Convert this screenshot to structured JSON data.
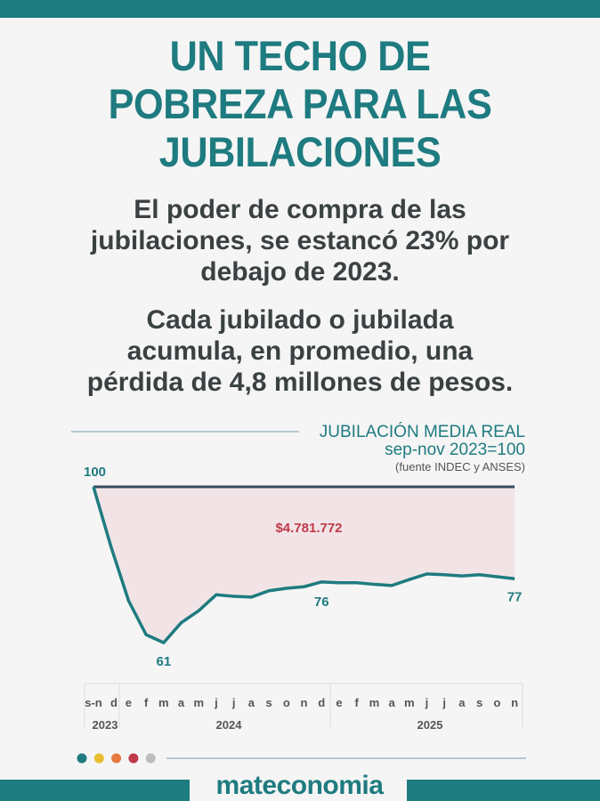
{
  "header": {
    "title_lines": [
      "UN TECHO DE",
      "POBREZA PARA LAS",
      "JUBILACIONES"
    ],
    "subtitle1_lines": [
      "El poder de compra de las",
      "jubilaciones, se estancó 23% por",
      "debajo de 2023."
    ],
    "subtitle2_lines": [
      "Cada jubilado o jubilada",
      "acumula, en promedio, una",
      "pérdida de 4,8 millones de pesos."
    ]
  },
  "chart_data": {
    "type": "line",
    "title": "JUBILACIÓN MEDIA REAL",
    "subtitle": "sep-nov 2023=100",
    "source": "(fuente INDEC y ANSES)",
    "x": [
      "s-n",
      "d",
      "e",
      "f",
      "m",
      "a",
      "m",
      "j",
      "j",
      "a",
      "s",
      "o",
      "n",
      "d",
      "e",
      "f",
      "m",
      "a",
      "m",
      "j",
      "j",
      "a",
      "s",
      "o",
      "n"
    ],
    "years": [
      {
        "label": "2023",
        "from": 0,
        "to": 1
      },
      {
        "label": "2024",
        "from": 2,
        "to": 13
      },
      {
        "label": "2025",
        "from": 14,
        "to": 24
      }
    ],
    "series": [
      {
        "name": "Jubilación media real",
        "values": [
          100,
          85,
          71.5,
          63,
          61,
          66,
          69,
          73,
          72.6,
          72.4,
          74,
          74.6,
          75,
          76.2,
          76,
          76,
          75.6,
          75.3,
          76.8,
          78.2,
          78,
          77.7,
          78,
          77.5,
          77
        ]
      },
      {
        "name": "Base",
        "values": [
          100,
          100,
          100,
          100,
          100,
          100,
          100,
          100,
          100,
          100,
          100,
          100,
          100,
          100,
          100,
          100,
          100,
          100,
          100,
          100,
          100,
          100,
          100,
          100,
          100
        ]
      }
    ],
    "point_labels": [
      {
        "index": 0,
        "text": "100"
      },
      {
        "index": 4,
        "text": "61"
      },
      {
        "index": 13,
        "text": "76"
      },
      {
        "index": 24,
        "text": "77"
      }
    ],
    "area_label": "$4.781.772",
    "ylim": [
      55,
      102
    ],
    "colors": {
      "line": "#1e7b80",
      "base": "#3a4a5e",
      "area": "#f2e4e6",
      "area_label": "#c0394a"
    }
  },
  "footer": {
    "dot_colors": [
      "#1e7b80",
      "#e8bf2f",
      "#e57a40",
      "#c0394a",
      "#bdbdbd"
    ],
    "brand": "mateconomia"
  }
}
